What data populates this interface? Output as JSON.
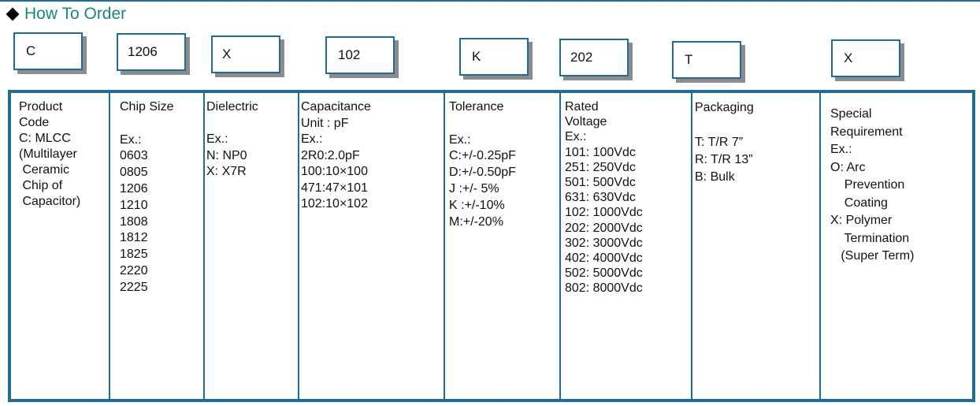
{
  "title": "How To Order",
  "codes": [
    "C",
    "1206",
    "X",
    "102",
    "K",
    "202",
    "T",
    "X"
  ],
  "columns": [
    {
      "lines": [
        "Product",
        "Code",
        "C: MLCC",
        "(Multilayer",
        " Ceramic",
        " Chip of",
        " Capacitor)"
      ]
    },
    {
      "lines": [
        "Chip Size",
        "",
        "Ex.:",
        "0603",
        "0805",
        "1206",
        "1210",
        "1808",
        "1812",
        "1825",
        "2220",
        "2225"
      ]
    },
    {
      "lines": [
        "Dielectric",
        "",
        "Ex.:",
        "N: NP0",
        "X: X7R"
      ]
    },
    {
      "lines": [
        "Capacitance",
        "Unit : pF",
        "Ex.:",
        "2R0:2.0pF",
        "100:10×100",
        "471:47×101",
        "102:10×102"
      ]
    },
    {
      "lines": [
        "Tolerance",
        "",
        "Ex.:",
        "C:+/-0.25pF",
        "D:+/-0.50pF",
        "J :+/- 5%",
        "K :+/-10%",
        "M:+/-20%"
      ]
    },
    {
      "lines": [
        "Rated",
        "Voltage",
        "Ex.:",
        "101: 100Vdc",
        "251: 250Vdc",
        "501: 500Vdc",
        "631: 630Vdc",
        "102: 1000Vdc",
        "202: 2000Vdc",
        "302: 3000Vdc",
        "402: 4000Vdc",
        "502: 5000Vdc",
        "802: 8000Vdc"
      ]
    },
    {
      "lines": [
        "Packaging",
        "",
        "T: T/R 7”",
        "R: T/R 13”",
        "B: Bulk"
      ]
    },
    {
      "lines": [
        "Special",
        "Requirement",
        "Ex.:",
        "O: Arc",
        "    Prevention",
        "    Coating",
        "X: Polymer",
        "    Termination",
        "   (Super Term)"
      ]
    }
  ],
  "colors": {
    "border": "#1f6d96",
    "title": "#178a7c"
  }
}
